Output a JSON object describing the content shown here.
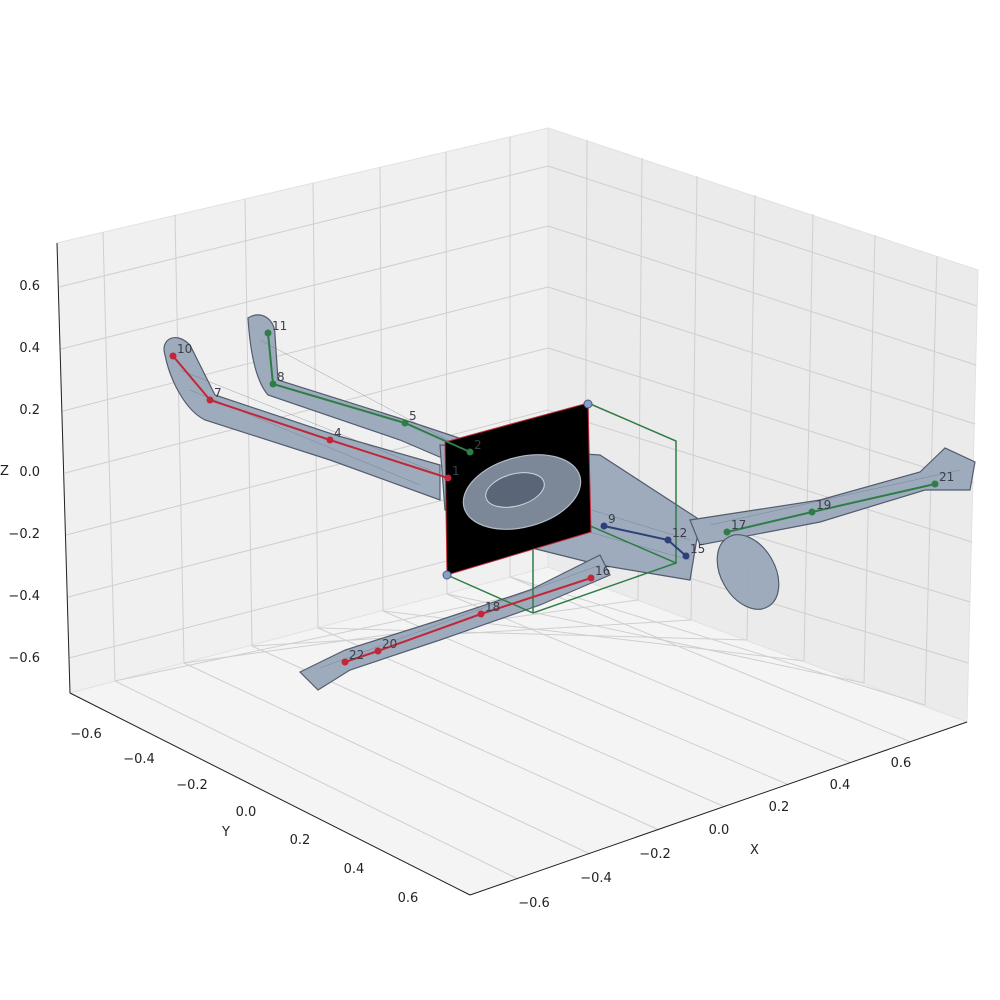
{
  "chart_data": {
    "type": "scatter",
    "projection": "3d",
    "title": "",
    "xlabel": "X",
    "ylabel": "Y",
    "zlabel": "Z",
    "xlim": [
      -0.7,
      0.7
    ],
    "ylim": [
      -0.7,
      0.7
    ],
    "zlim": [
      -0.7,
      0.7
    ],
    "xticks": [
      "−0.6",
      "−0.4",
      "−0.2",
      "0.0",
      "0.2",
      "0.4",
      "0.6"
    ],
    "yticks": [
      "−0.6",
      "−0.4",
      "−0.2",
      "0.0",
      "0.2",
      "0.4",
      "0.6"
    ],
    "zticks": [
      "−0.6",
      "−0.4",
      "−0.2",
      "0.0",
      "0.2",
      "0.4",
      "0.6"
    ],
    "grid": true,
    "pane_color": "#f2f2f2",
    "mesh_color": "#9aa8bb",
    "colors": {
      "red_chain": "#c0283a",
      "green_chain": "#2e7d46",
      "blue_chain": "#2e3f7a",
      "slice_plane": "#000000",
      "bounding_box": "#2e7d46"
    },
    "series": [
      {
        "labels": [
          "10",
          "7",
          "4",
          "1"
        ]
      },
      {
        "labels": [
          "11",
          "8",
          "5",
          "2"
        ]
      },
      {
        "labels": [
          "9",
          "12",
          "15"
        ]
      },
      {
        "labels": [
          "22",
          "20",
          "18",
          "16"
        ]
      },
      {
        "labels": [
          "21",
          "19",
          "17"
        ]
      }
    ]
  }
}
